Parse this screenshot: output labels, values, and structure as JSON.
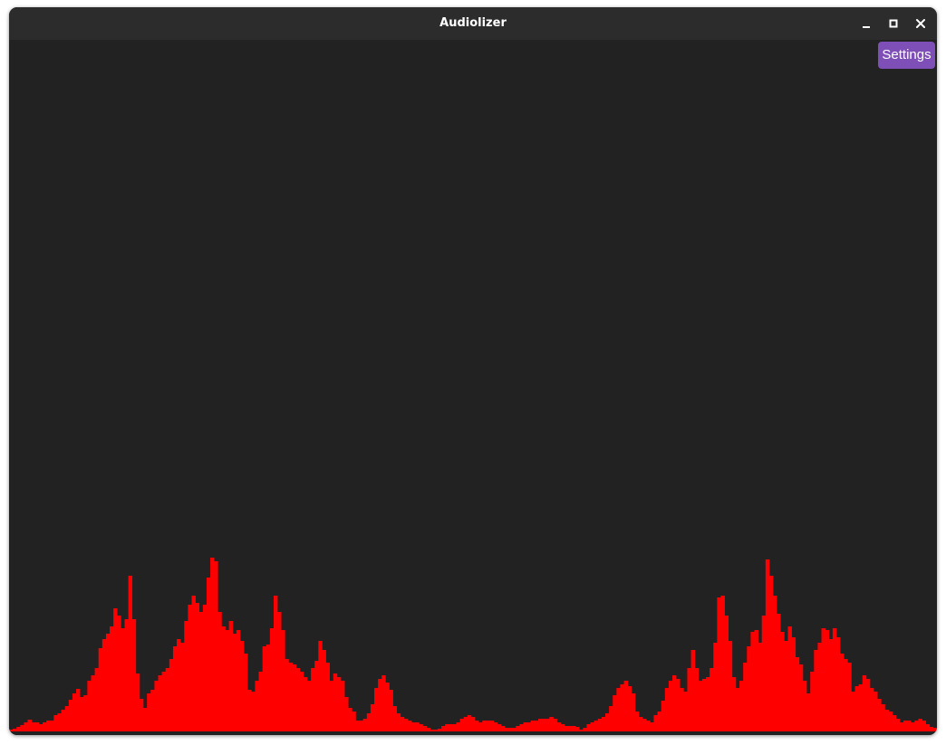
{
  "window": {
    "title": "Audiolizer"
  },
  "controls": {
    "minimize_icon": "minimize-icon",
    "maximize_icon": "maximize-icon",
    "close_icon": "close-icon"
  },
  "settings": {
    "label": "Settings",
    "color": "#7e4fb6"
  },
  "visualizer": {
    "bar_color": "#ff0000",
    "background": "#222222",
    "levels": [
      2,
      3,
      5,
      7,
      10,
      13,
      10,
      10,
      8,
      10,
      12,
      12,
      18,
      20,
      24,
      28,
      35,
      42,
      47,
      38,
      40,
      56,
      62,
      70,
      92,
      102,
      108,
      116,
      136,
      128,
      114,
      124,
      172,
      124,
      64,
      36,
      26,
      42,
      46,
      56,
      62,
      66,
      70,
      80,
      94,
      102,
      98,
      122,
      140,
      150,
      142,
      132,
      140,
      170,
      192,
      188,
      132,
      116,
      112,
      122,
      108,
      112,
      100,
      86,
      46,
      44,
      56,
      66,
      94,
      96,
      114,
      150,
      132,
      112,
      80,
      76,
      74,
      70,
      66,
      60,
      56,
      70,
      78,
      100,
      90,
      76,
      56,
      64,
      60,
      56,
      38,
      26,
      22,
      12,
      12,
      14,
      20,
      30,
      48,
      58,
      62,
      54,
      46,
      28,
      20,
      16,
      14,
      12,
      10,
      10,
      8,
      6,
      4,
      2,
      2,
      3,
      6,
      8,
      8,
      8,
      10,
      14,
      16,
      18,
      16,
      12,
      10,
      12,
      12,
      12,
      10,
      8,
      6,
      4,
      4,
      4,
      6,
      8,
      10,
      10,
      12,
      12,
      14,
      14,
      14,
      16,
      14,
      10,
      8,
      6,
      6,
      6,
      5,
      2,
      4,
      8,
      10,
      12,
      14,
      16,
      20,
      28,
      40,
      48,
      52,
      56,
      50,
      42,
      22,
      16,
      14,
      12,
      10,
      18,
      22,
      34,
      48,
      56,
      62,
      58,
      48,
      44,
      70,
      90,
      70,
      56,
      58,
      60,
      70,
      98,
      148,
      150,
      128,
      100,
      60,
      48,
      56,
      76,
      94,
      110,
      112,
      98,
      128,
      190,
      172,
      150,
      130,
      110,
      100,
      116,
      104,
      82,
      74,
      56,
      42,
      66,
      90,
      98,
      114,
      112,
      102,
      114,
      104,
      86,
      80,
      76,
      44,
      50,
      52,
      62,
      58,
      48,
      44,
      36,
      30,
      24,
      22,
      18,
      14,
      10,
      12,
      12,
      10,
      12,
      14,
      12,
      8,
      5,
      4
    ]
  }
}
